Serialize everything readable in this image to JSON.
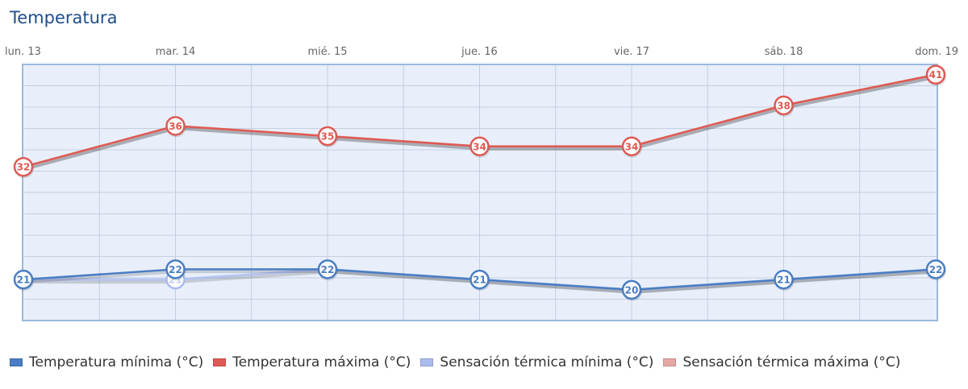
{
  "title": "Temperatura",
  "chart_data": {
    "type": "line",
    "categories": [
      "lun. 13",
      "mar. 14",
      "mié. 15",
      "jue. 16",
      "vie. 17",
      "sáb. 18",
      "dom. 19"
    ],
    "ylim": [
      17,
      42
    ],
    "grid": true,
    "legend_position": "bottom",
    "series": [
      {
        "name": "Temperatura mínima (°C)",
        "color": "#4a7dc3",
        "values": [
          21,
          22,
          22,
          21,
          20,
          21,
          22
        ]
      },
      {
        "name": "Temperatura máxima (°C)",
        "color": "#de5a54",
        "values": [
          32,
          36,
          35,
          34,
          34,
          38,
          41
        ]
      },
      {
        "name": "Sensación térmica mínima (°C)",
        "color": "#aabbee",
        "values": [
          21,
          21,
          22,
          21,
          20,
          21,
          22
        ]
      },
      {
        "name": "Sensación térmica máxima (°C)",
        "color": "#e4a7a4",
        "values": [
          32,
          36,
          35,
          34,
          34,
          38,
          41
        ]
      }
    ]
  },
  "colors": {
    "title": "#1f4e8c",
    "plot_background": "#e8effa",
    "plot_border": "#9db8dc",
    "grid": "#c4cfe0"
  }
}
